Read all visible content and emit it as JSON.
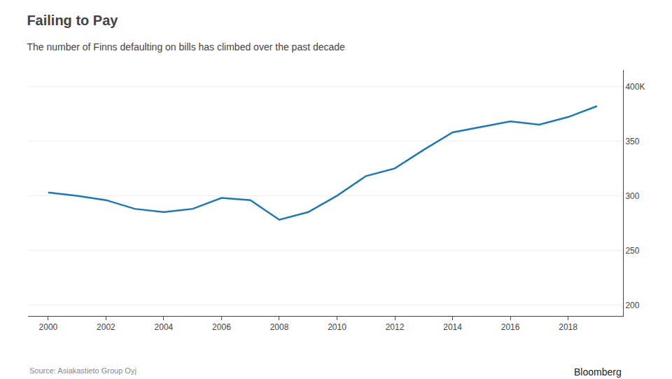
{
  "chart_data": {
    "type": "line",
    "title": "Failing to Pay",
    "subtitle": "The number of Finns defaulting on bills has climbed over the past decade",
    "annotations": [
      "Source: Asiakastieto Group Oyj",
      "Bloomberg"
    ],
    "x": [
      2000,
      2001,
      2002,
      2003,
      2004,
      2005,
      2006,
      2007,
      2008,
      2009,
      2010,
      2011,
      2012,
      2013,
      2014,
      2015,
      2016,
      2017,
      2018,
      2019
    ],
    "values": [
      303,
      300,
      296,
      288,
      285,
      288,
      298,
      296,
      278,
      285,
      300,
      318,
      325,
      342,
      358,
      363,
      368,
      365,
      372,
      382
    ],
    "xlim": [
      1999.3,
      2019.9
    ],
    "xticks": [
      2000,
      2002,
      2004,
      2006,
      2008,
      2010,
      2012,
      2014,
      2016,
      2018
    ],
    "ylim": [
      190,
      415
    ],
    "yticks": [
      200,
      250,
      300,
      350,
      {
        "value": 400,
        "label": "400K"
      }
    ],
    "grid": true
  }
}
